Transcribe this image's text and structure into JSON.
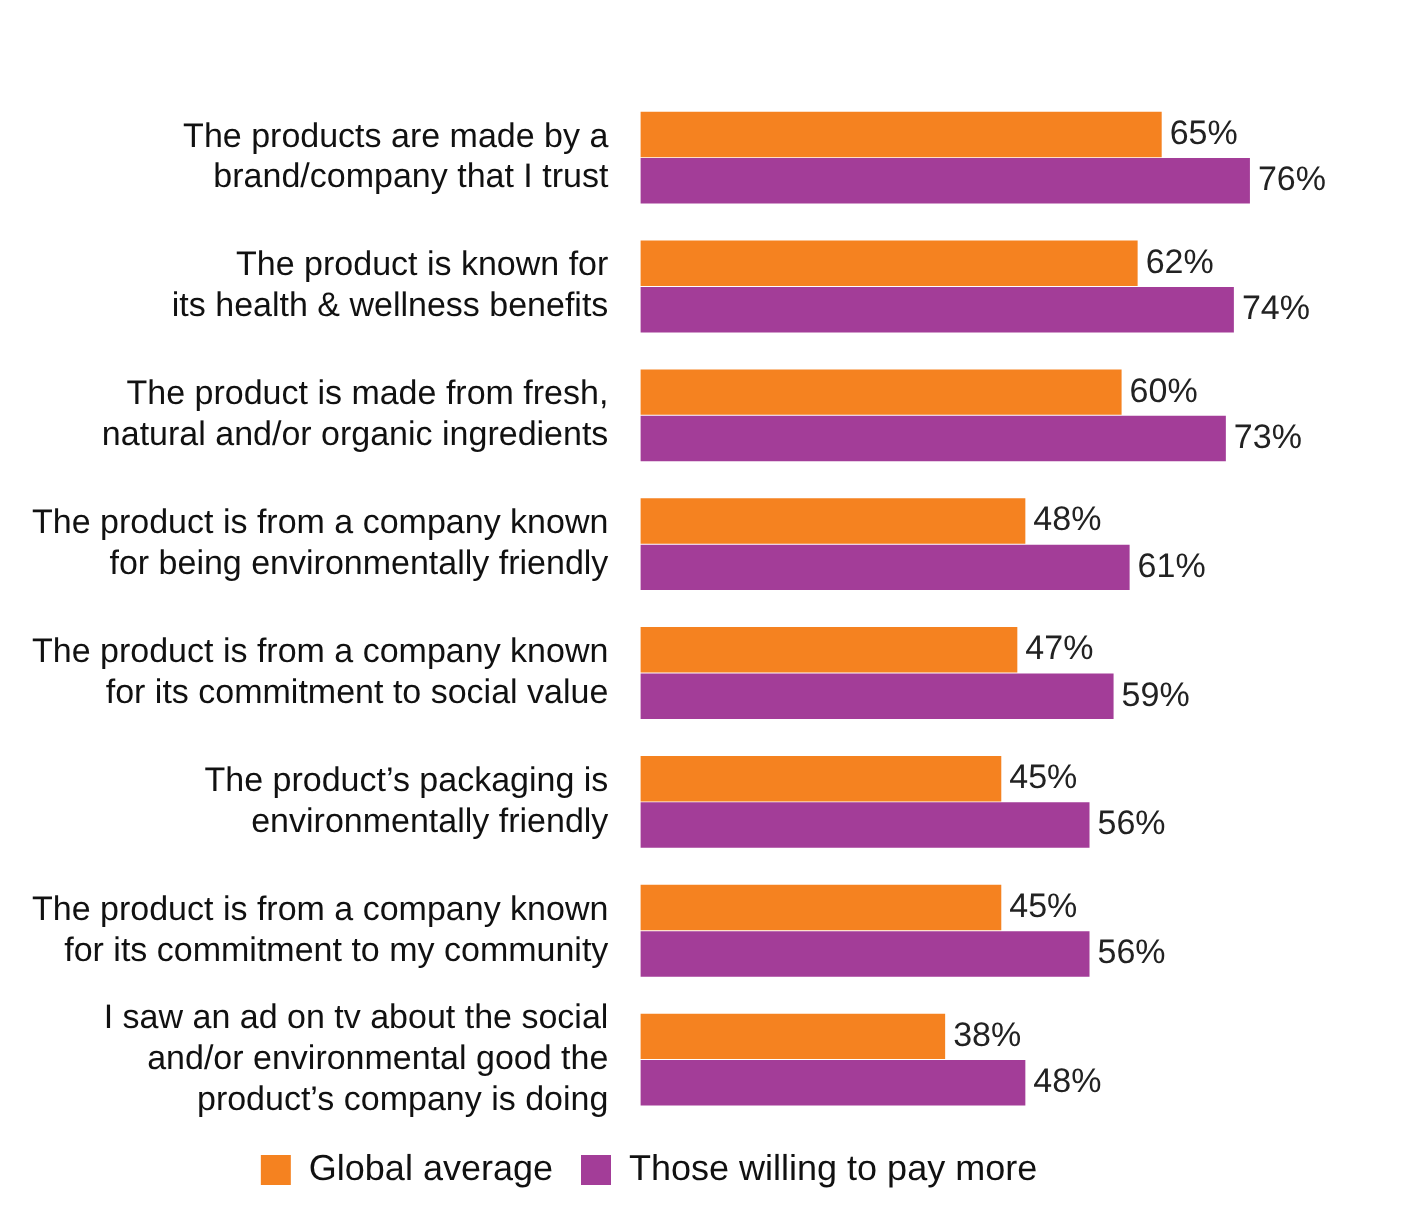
{
  "chart_data": {
    "type": "bar",
    "orientation": "horizontal",
    "legend": "bottom",
    "grid": false,
    "categories": [
      "The products are made by a\nbrand/company that I trust",
      "The product is known for\nits health & wellness benefits",
      "The product is made from fresh,\nnatural and/or organic ingredients",
      "The product is from a company known\nfor being environmentally friendly",
      "The product is from a company known\nfor its commitment to social value",
      "The product’s packaging is\nenvironmentally friendly",
      "The product is from a company known\nfor its commitment to my community",
      "I saw an ad on tv about the social\nand/or environmental good the\nproduct’s company is doing"
    ],
    "series": [
      {
        "name": "Global average",
        "color": "#f58220",
        "values": [
          65,
          62,
          60,
          48,
          47,
          45,
          45,
          38
        ],
        "value_labels": [
          "65%",
          "62%",
          "60%",
          "48%",
          "47%",
          "45%",
          "45%",
          "38%"
        ]
      },
      {
        "name": "Those willing to pay more",
        "color": "#a33d98",
        "values": [
          76,
          74,
          73,
          61,
          59,
          56,
          56,
          48
        ],
        "value_labels": [
          "76%",
          "74%",
          "73%",
          "61%",
          "59%",
          "56%",
          "56%",
          "48%"
        ]
      }
    ]
  }
}
